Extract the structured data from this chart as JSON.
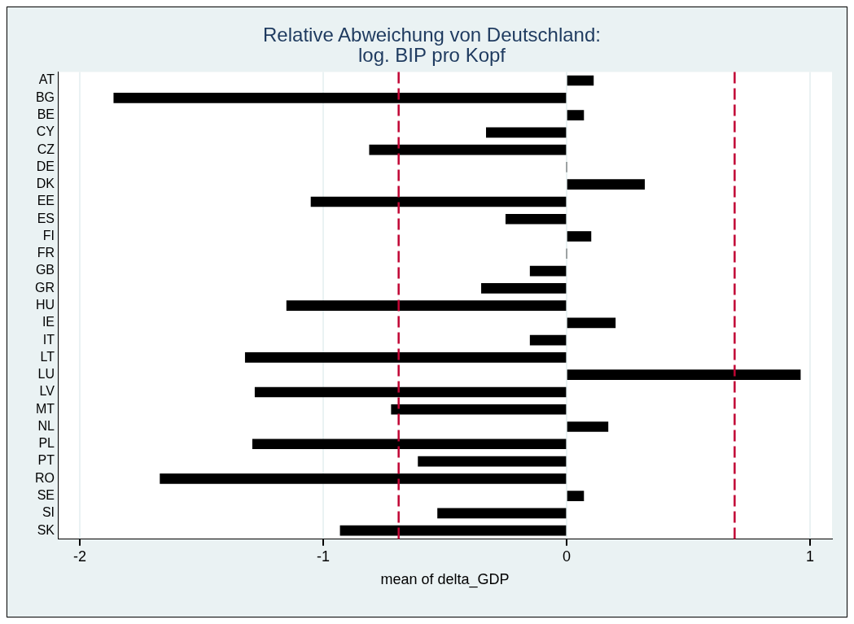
{
  "chart_data": {
    "type": "bar",
    "orientation": "horizontal",
    "title": "Relative Abweichung von Deutschland:\nlog. BIP pro Kopf",
    "xlabel": "mean of delta_GDP",
    "categories": [
      "AT",
      "BG",
      "BE",
      "CY",
      "CZ",
      "DE",
      "DK",
      "EE",
      "ES",
      "FI",
      "FR",
      "GB",
      "GR",
      "HU",
      "IE",
      "IT",
      "LT",
      "LU",
      "LV",
      "MT",
      "NL",
      "PL",
      "PT",
      "RO",
      "SE",
      "SI",
      "SK"
    ],
    "values": [
      0.11,
      -1.86,
      0.07,
      -0.33,
      -0.81,
      0,
      0.32,
      -1.05,
      -0.25,
      0.1,
      0,
      -0.15,
      -0.35,
      -1.15,
      0.2,
      -0.15,
      -1.32,
      0.96,
      -1.28,
      -0.72,
      0.17,
      -1.29,
      -0.61,
      -1.67,
      0.07,
      -0.53,
      -0.93
    ],
    "color": "#000000",
    "xlim": [
      -2.09,
      1.09
    ],
    "xticks": [
      -2,
      -1,
      0,
      1
    ],
    "grid": "x",
    "legend": false,
    "ref_lines": [
      {
        "axis": "x",
        "value": -0.69,
        "color": "#c10534",
        "line_style": "dashed"
      },
      {
        "axis": "x",
        "value": 0.69,
        "color": "#c10534",
        "line_style": "dashed"
      }
    ]
  }
}
